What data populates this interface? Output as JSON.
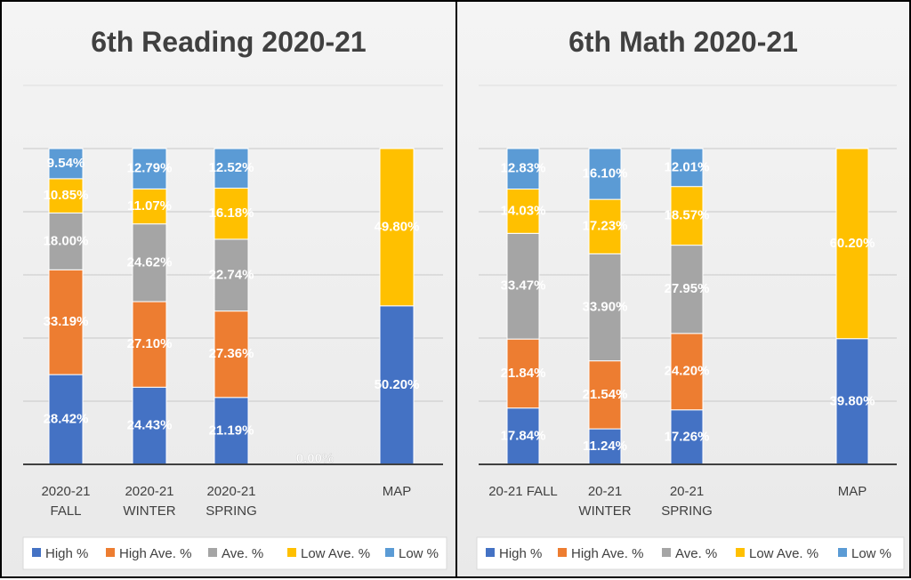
{
  "colors": {
    "High %": "#4472c4",
    "High Ave. %": "#ed7d31",
    "Ave. %": "#a5a5a5",
    "Low Ave. %": "#ffc000",
    "Low %": "#5b9bd5"
  },
  "chart_data": [
    {
      "type": "bar",
      "stacked": true,
      "title": "6th Reading 2020-21",
      "categories": [
        [
          "2020-21",
          "FALL"
        ],
        [
          "2020-21",
          "WINTER"
        ],
        [
          "2020-21",
          "SPRING"
        ],
        [
          ""
        ],
        [
          "MAP"
        ]
      ],
      "series": [
        {
          "name": "High %",
          "values": [
            28.42,
            24.43,
            21.19,
            0,
            50.2
          ],
          "labels": [
            "28.42%",
            "24.43%",
            "21.19%",
            "0.00%",
            "50.20%"
          ]
        },
        {
          "name": "High Ave. %",
          "values": [
            33.19,
            27.1,
            27.36,
            null,
            null
          ],
          "labels": [
            "33.19%",
            "27.10%",
            "27.36%",
            null,
            null
          ]
        },
        {
          "name": "Ave. %",
          "values": [
            18.0,
            24.62,
            22.74,
            null,
            null
          ],
          "labels": [
            "18.00%",
            "24.62%",
            "22.74%",
            null,
            null
          ]
        },
        {
          "name": "Low Ave. %",
          "values": [
            10.85,
            11.07,
            16.18,
            null,
            49.8
          ],
          "labels": [
            "10.85%",
            "11.07%",
            "16.18%",
            null,
            "49.80%"
          ]
        },
        {
          "name": "Low %",
          "values": [
            9.54,
            12.79,
            12.52,
            null,
            null
          ],
          "labels": [
            "9.54%",
            "12.79%",
            "12.52%",
            null,
            null
          ]
        }
      ],
      "ylim": [
        0,
        100
      ],
      "grid": true,
      "legend": "bottom"
    },
    {
      "type": "bar",
      "stacked": true,
      "title": "6th Math 2020-21",
      "categories": [
        [
          "20-21 FALL"
        ],
        [
          "20-21",
          "WINTER"
        ],
        [
          "20-21",
          "SPRING"
        ],
        [
          ""
        ],
        [
          "MAP"
        ]
      ],
      "series": [
        {
          "name": "High %",
          "values": [
            17.84,
            11.24,
            17.26,
            null,
            39.8
          ],
          "labels": [
            "17.84%",
            "11.24%",
            "17.26%",
            null,
            "39.80%"
          ]
        },
        {
          "name": "High Ave. %",
          "values": [
            21.84,
            21.54,
            24.2,
            null,
            null
          ],
          "labels": [
            "21.84%",
            "21.54%",
            "24.20%",
            null,
            null
          ]
        },
        {
          "name": "Ave. %",
          "values": [
            33.47,
            33.9,
            27.95,
            null,
            null
          ],
          "labels": [
            "33.47%",
            "33.90%",
            "27.95%",
            null,
            null
          ]
        },
        {
          "name": "Low Ave. %",
          "values": [
            14.03,
            17.23,
            18.57,
            null,
            60.2
          ],
          "labels": [
            "14.03%",
            "17.23%",
            "18.57%",
            null,
            "60.20%"
          ]
        },
        {
          "name": "Low %",
          "values": [
            12.83,
            16.1,
            12.01,
            null,
            null
          ],
          "labels": [
            "12.83%",
            "16.10%",
            "12.01%",
            null,
            null
          ]
        }
      ],
      "ylim": [
        0,
        100
      ],
      "grid": true,
      "legend": "bottom"
    }
  ]
}
